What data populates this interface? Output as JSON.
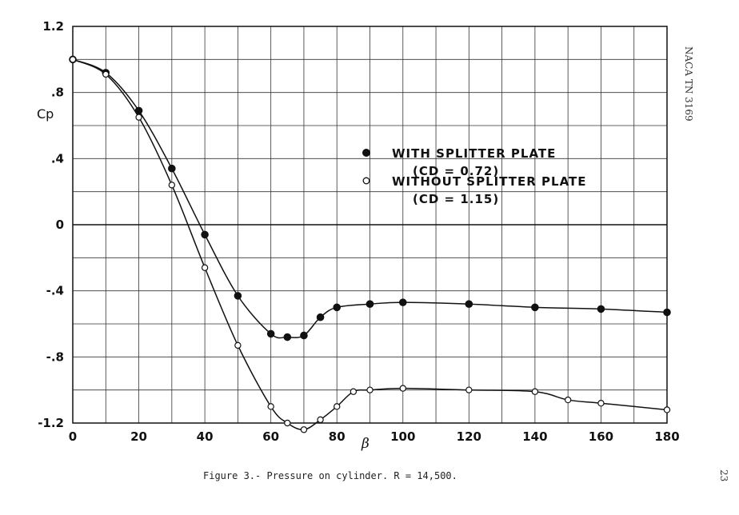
{
  "page": {
    "caption": "Figure 3.- Pressure on cylinder.  R = 14,500.",
    "side_reference": "NACA TN 3169",
    "page_number": "23"
  },
  "chart_data": {
    "type": "line",
    "xlabel": "β",
    "ylabel": "Cp",
    "xlim": [
      0,
      180
    ],
    "ylim": [
      -1.2,
      1.2
    ],
    "x_ticks": [
      "0",
      "20",
      "40",
      "60",
      "80",
      "100",
      "120",
      "140",
      "160",
      "180"
    ],
    "y_ticks": [
      "1.2",
      ".8",
      ".4",
      "0",
      "-.4",
      "-.8",
      "-1.2"
    ],
    "grid": true,
    "legend_position": "center-right",
    "series": [
      {
        "name": "WITH SPLITTER PLATE",
        "note": "(CD = 0.72)",
        "marker": "filled-circle",
        "x": [
          0,
          10,
          20,
          30,
          40,
          50,
          60,
          65,
          70,
          75,
          80,
          90,
          100,
          120,
          140,
          160,
          180
        ],
        "y": [
          1.0,
          0.92,
          0.69,
          0.34,
          -0.06,
          -0.43,
          -0.66,
          -0.68,
          -0.67,
          -0.56,
          -0.5,
          -0.48,
          -0.47,
          -0.48,
          -0.5,
          -0.51,
          -0.53
        ]
      },
      {
        "name": "WITHOUT SPLITTER PLATE",
        "note": "(CD = 1.15)",
        "marker": "open-circle",
        "x": [
          0,
          10,
          20,
          30,
          40,
          50,
          60,
          65,
          70,
          75,
          80,
          85,
          90,
          100,
          120,
          140,
          150,
          160,
          180
        ],
        "y": [
          1.0,
          0.91,
          0.65,
          0.24,
          -0.26,
          -0.73,
          -1.1,
          -1.2,
          -1.24,
          -1.18,
          -1.1,
          -1.01,
          -1.0,
          -0.99,
          -1.0,
          -1.01,
          -1.06,
          -1.08,
          -1.12
        ]
      }
    ]
  }
}
